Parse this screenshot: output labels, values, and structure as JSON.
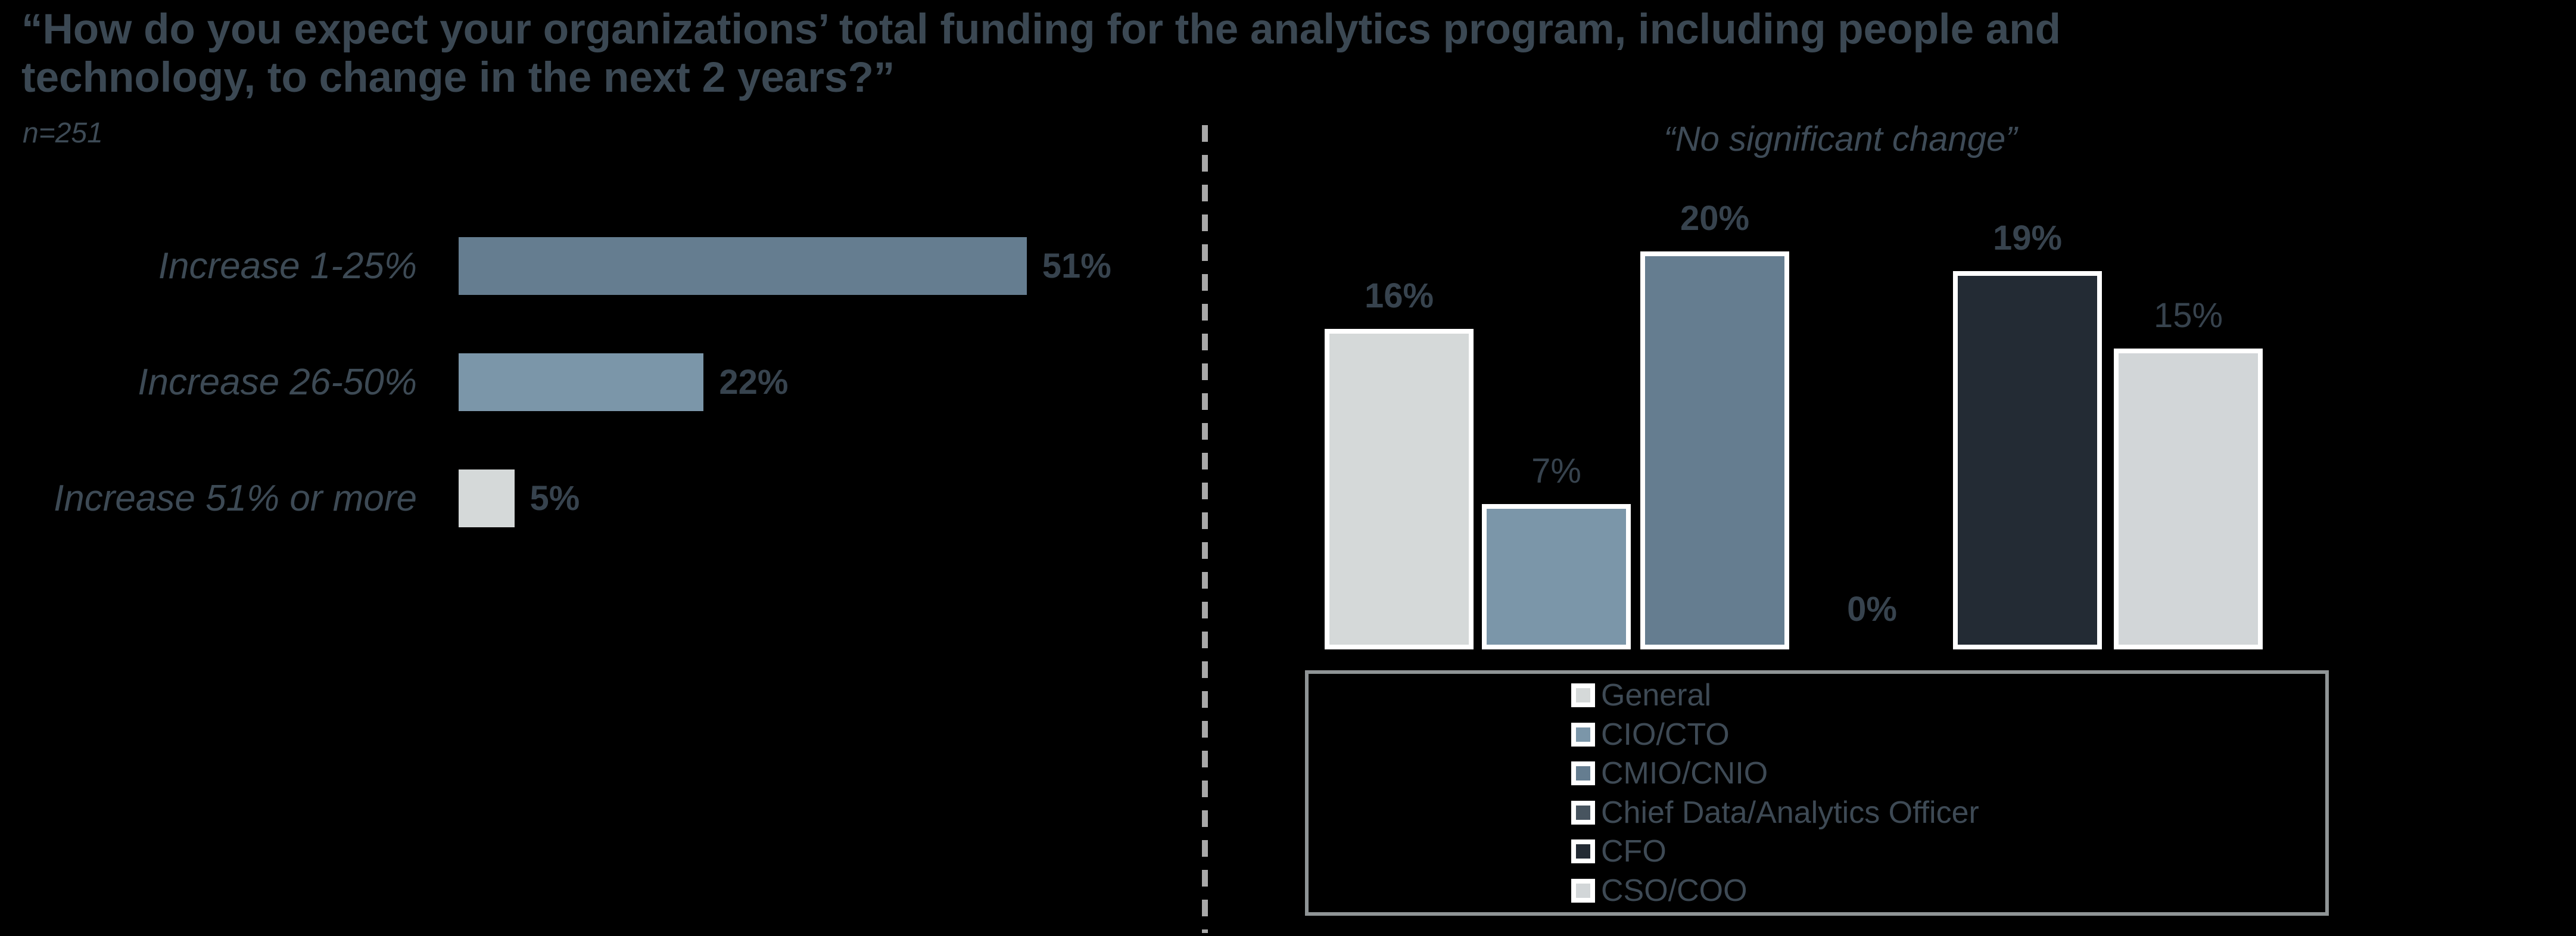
{
  "header": {
    "title_line1": "“How do you expect your organizations’ total funding for the analytics program, including people and",
    "title_line2": "technology, to change in the next 2 years?”",
    "sample_size": "n=251"
  },
  "divider": {
    "color": "#A8A8A8",
    "style": "dashed-vertical"
  },
  "legend": {
    "border_color": "#8F9496",
    "swatch_border_color": "#FFFFFF"
  },
  "colors": {
    "background": "#000000",
    "title_text": "#3B4853",
    "category_text": "#3D4A55",
    "value_text": "#37434E",
    "bar_outline": "#FFFFFF"
  },
  "chart_data": [
    {
      "type": "bar",
      "orientation": "horizontal",
      "title": "“How do you expect your organizations’ total funding for the analytics program, including people and technology, to change in the next 2 years?”",
      "subtitle": "n=251",
      "categories": [
        "Increase 1-25%",
        "Increase 26-50%",
        "Increase 51% or more"
      ],
      "values": [
        51,
        22,
        5
      ],
      "value_labels": [
        "51%",
        "22%",
        "5%"
      ],
      "bar_colors": [
        "#657D90",
        "#7B96A9",
        "#D5D9D9"
      ],
      "xlim": [
        0,
        100
      ],
      "grid": false,
      "legend_position": "none"
    },
    {
      "type": "bar",
      "orientation": "vertical",
      "title": "“No significant change”",
      "categories": [
        "General",
        "CIO/CTO",
        "CMIO/CNIO",
        "Chief Data/Analytics Officer",
        "CFO",
        "CSO/COO"
      ],
      "values": [
        16,
        7,
        20,
        0,
        19,
        15
      ],
      "value_labels": [
        "16%",
        "7%",
        "20%",
        "0%",
        "19%",
        "15%"
      ],
      "value_label_weights": [
        "bold",
        "normal",
        "bold",
        "bold",
        "bold",
        "normal"
      ],
      "bar_colors": [
        "#D5D9D9",
        "#7B96A9",
        "#657D90",
        "#47545F",
        "#232B34",
        "#D2D6D8"
      ],
      "ylim": [
        0,
        22
      ],
      "grid": false,
      "legend_position": "bottom"
    }
  ]
}
